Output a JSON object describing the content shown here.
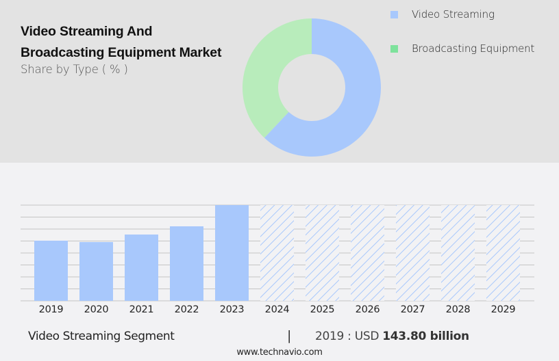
{
  "header": {
    "title_line1": "Video Streaming And",
    "title_line2": "Broadcasting Equipment Market",
    "subtitle": "Share by Type ( % )"
  },
  "legend": {
    "items": [
      {
        "label": "Video Streaming",
        "color": "#a8c8fc"
      },
      {
        "label": "Broadcasting Equipment",
        "color": "#7ee29c"
      }
    ]
  },
  "footer": {
    "segment_label": "Video Streaming Segment",
    "separator": "|",
    "value_prefix": "2019 : USD ",
    "value_bold": "143.80 billion",
    "source": "www.technavio.com"
  },
  "colors": {
    "top_panel": "#e3e3e3",
    "bottom_panel": "#f2f2f4",
    "bar": "#a8c8fc",
    "donut_video": "#a8c8fc",
    "donut_broadcast": "#b8ecbb",
    "gridline": "#c4c4c4"
  },
  "chart_data": [
    {
      "type": "pie",
      "subtype": "donut",
      "title": "Video Streaming And Broadcasting Equipment Market",
      "subtitle": "Share by Type ( % )",
      "categories": [
        "Video Streaming",
        "Broadcasting Equipment"
      ],
      "values": [
        62,
        38
      ],
      "legend_position": "right"
    },
    {
      "type": "bar",
      "title": "Video Streaming Segment",
      "categories": [
        "2019",
        "2020",
        "2021",
        "2022",
        "2023",
        "2024",
        "2025",
        "2026",
        "2027",
        "2028",
        "2029"
      ],
      "series": [
        {
          "name": "Video Streaming Segment (USD billion)",
          "values": [
            143.8,
            140.5,
            158.5,
            178.1,
            228.8,
            null,
            null,
            null,
            null,
            null,
            null
          ]
        }
      ],
      "forecast_categories": [
        "2024",
        "2025",
        "2026",
        "2027",
        "2028",
        "2029"
      ],
      "forecast_style": "hatched, full height (values not disclosed)",
      "annotation": "2019 : USD 143.80 billion",
      "xlabel": "",
      "ylabel": "",
      "ylim": [
        0,
        228.8
      ],
      "grid": true,
      "y_tick_labels_shown": false
    }
  ]
}
